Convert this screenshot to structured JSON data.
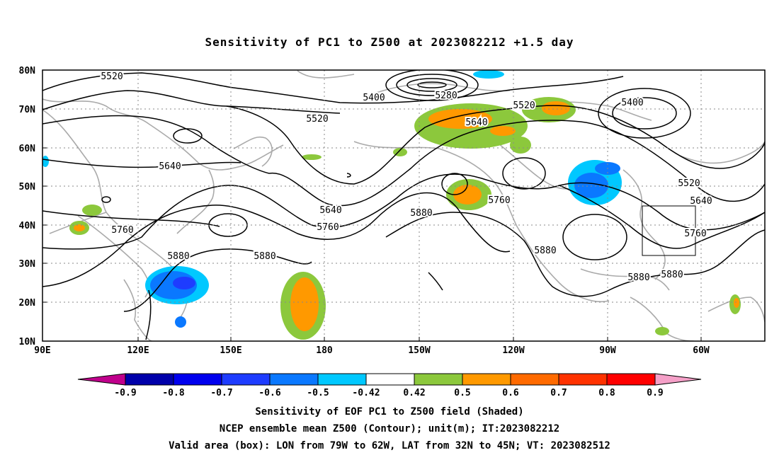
{
  "title": "Sensitivity of PC1 to Z500 at 2023082212 +1.5 day",
  "lat_labels": [
    "80N",
    "70N",
    "60N",
    "50N",
    "40N",
    "30N",
    "20N",
    "10N"
  ],
  "lon_labels": [
    "90E",
    "120E",
    "150E",
    "180",
    "150W",
    "120W",
    "90W",
    "60W"
  ],
  "contour_labels": [
    "5520",
    "5400",
    "5280",
    "5520",
    "5400",
    "5520",
    "5640",
    "5640",
    "5520",
    "5640",
    "5760",
    "5760",
    "5760",
    "5640",
    "5880",
    "5880",
    "5880",
    "5760",
    "5880",
    "5880"
  ],
  "colorbar": {
    "ticks": [
      "-0.9",
      "-0.8",
      "-0.7",
      "-0.6",
      "-0.5",
      "-0.42",
      "0.42",
      "0.5",
      "0.6",
      "0.7",
      "0.8",
      "0.9"
    ],
    "colors": [
      "#c0008c",
      "#0000aa",
      "#0000ee",
      "#1e3cff",
      "#0a78ff",
      "#00c8ff",
      "#ffffff",
      "#8cc83c",
      "#ff9900",
      "#ff6a00",
      "#ff3200",
      "#ff0000",
      "#f5a0c8"
    ]
  },
  "caption": {
    "line1": "Sensitivity of EOF PC1 to Z500 field (Shaded)",
    "line2": "NCEP ensemble mean Z500 (Contour); unit(m); IT:2023082212",
    "line3": "Valid area (box): LON from 79W to 62W, LAT from 32N to 45N; VT: 2023082512"
  }
}
